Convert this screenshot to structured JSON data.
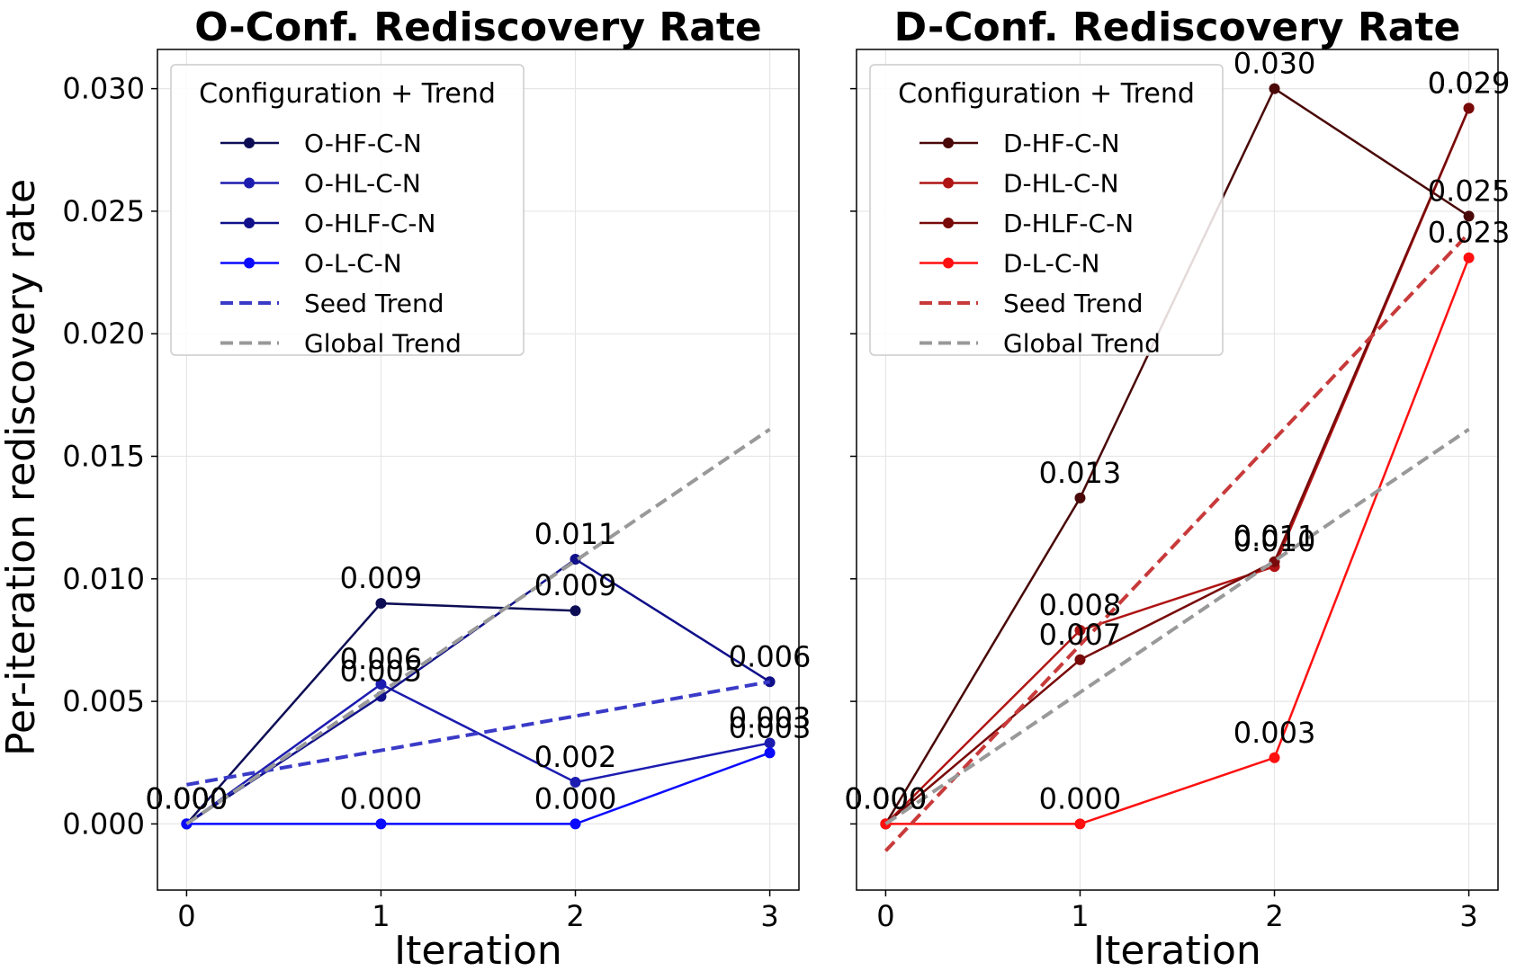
{
  "ylabel": "Per-iteration rediscovery rate",
  "chart_data": [
    {
      "type": "line",
      "title": "O-Conf. Rediscovery Rate",
      "xlabel": "Iteration",
      "ylabel": "Per-iteration rediscovery rate",
      "xlim": [
        -0.15,
        3.15
      ],
      "ylim": [
        -0.0027,
        0.0316
      ],
      "xticks": [
        0,
        1,
        2,
        3
      ],
      "yticks": [
        0.0,
        0.005,
        0.01,
        0.015,
        0.02,
        0.025,
        0.03
      ],
      "ytick_labels": [
        "0.000",
        "0.005",
        "0.010",
        "0.015",
        "0.020",
        "0.025",
        "0.030"
      ],
      "grid": true,
      "legend": {
        "title": "Configuration + Trend",
        "placement": "top-left"
      },
      "series": [
        {
          "name": "O-HF-C-N",
          "color": "#0d0d55",
          "x": [
            0,
            1,
            2
          ],
          "y": [
            0.0,
            0.009,
            0.0087
          ],
          "labels": [
            "0.000",
            "0.009",
            "0.009"
          ]
        },
        {
          "name": "O-HL-C-N",
          "color": "#1c1cb0",
          "x": [
            0,
            1,
            2,
            3
          ],
          "y": [
            0.0,
            0.0057,
            0.0017,
            0.0033
          ],
          "labels": [
            "0.000",
            "0.006",
            "0.002",
            "0.003"
          ]
        },
        {
          "name": "O-HLF-C-N",
          "color": "#10108a",
          "x": [
            0,
            1,
            2,
            3
          ],
          "y": [
            0.0,
            0.0052,
            0.0108,
            0.0058
          ],
          "labels": [
            "0.000",
            "0.005",
            "0.011",
            "0.006"
          ]
        },
        {
          "name": "O-L-C-N",
          "color": "#0a0aff",
          "x": [
            0,
            1,
            2,
            3
          ],
          "y": [
            0.0,
            0.0,
            0.0,
            0.0029
          ],
          "labels": [
            "0.000",
            "0.000",
            "0.000",
            "0.003"
          ]
        }
      ],
      "trends": [
        {
          "name": "Seed Trend",
          "color": "#3a3ac8",
          "x": [
            0,
            3
          ],
          "y": [
            0.0016,
            0.0058
          ]
        },
        {
          "name": "Global Trend",
          "color": "#999999",
          "x": [
            0,
            3
          ],
          "y": [
            0.0,
            0.0161
          ]
        }
      ]
    },
    {
      "type": "line",
      "title": "D-Conf. Rediscovery Rate",
      "xlabel": "Iteration",
      "xlim": [
        -0.15,
        3.15
      ],
      "ylim": [
        -0.0027,
        0.0316
      ],
      "xticks": [
        0,
        1,
        2,
        3
      ],
      "grid": true,
      "legend": {
        "title": "Configuration + Trend",
        "placement": "top-left"
      },
      "series": [
        {
          "name": "D-HF-C-N",
          "color": "#4a0808",
          "x": [
            0,
            1,
            2,
            3
          ],
          "y": [
            0.0,
            0.0133,
            0.03,
            0.0248
          ],
          "labels": [
            "0.000",
            "0.013",
            "0.030",
            "0.025"
          ]
        },
        {
          "name": "D-HL-C-N",
          "color": "#b01414",
          "x": [
            0,
            1,
            2,
            3
          ],
          "y": [
            0.0,
            0.0079,
            0.0105,
            0.0292
          ],
          "labels": [
            "0.000",
            "0.008",
            "0.010",
            "0.029"
          ]
        },
        {
          "name": "D-HLF-C-N",
          "color": "#780a0a",
          "x": [
            0,
            1,
            2,
            3
          ],
          "y": [
            0.0,
            0.0067,
            0.0107,
            0.0292
          ],
          "labels": [
            "0.000",
            "0.007",
            "0.011",
            "0.029"
          ]
        },
        {
          "name": "D-L-C-N",
          "color": "#ff1010",
          "x": [
            0,
            1,
            2,
            3
          ],
          "y": [
            0.0,
            0.0,
            0.0027,
            0.0231
          ],
          "labels": [
            "0.000",
            "0.000",
            "0.003",
            "0.023"
          ]
        }
      ],
      "trends": [
        {
          "name": "Seed Trend",
          "color": "#c83a3a",
          "x": [
            0,
            3
          ],
          "y": [
            -0.0011,
            0.0241
          ]
        },
        {
          "name": "Global Trend",
          "color": "#999999",
          "x": [
            0,
            3
          ],
          "y": [
            0.0,
            0.0161
          ]
        }
      ]
    }
  ]
}
